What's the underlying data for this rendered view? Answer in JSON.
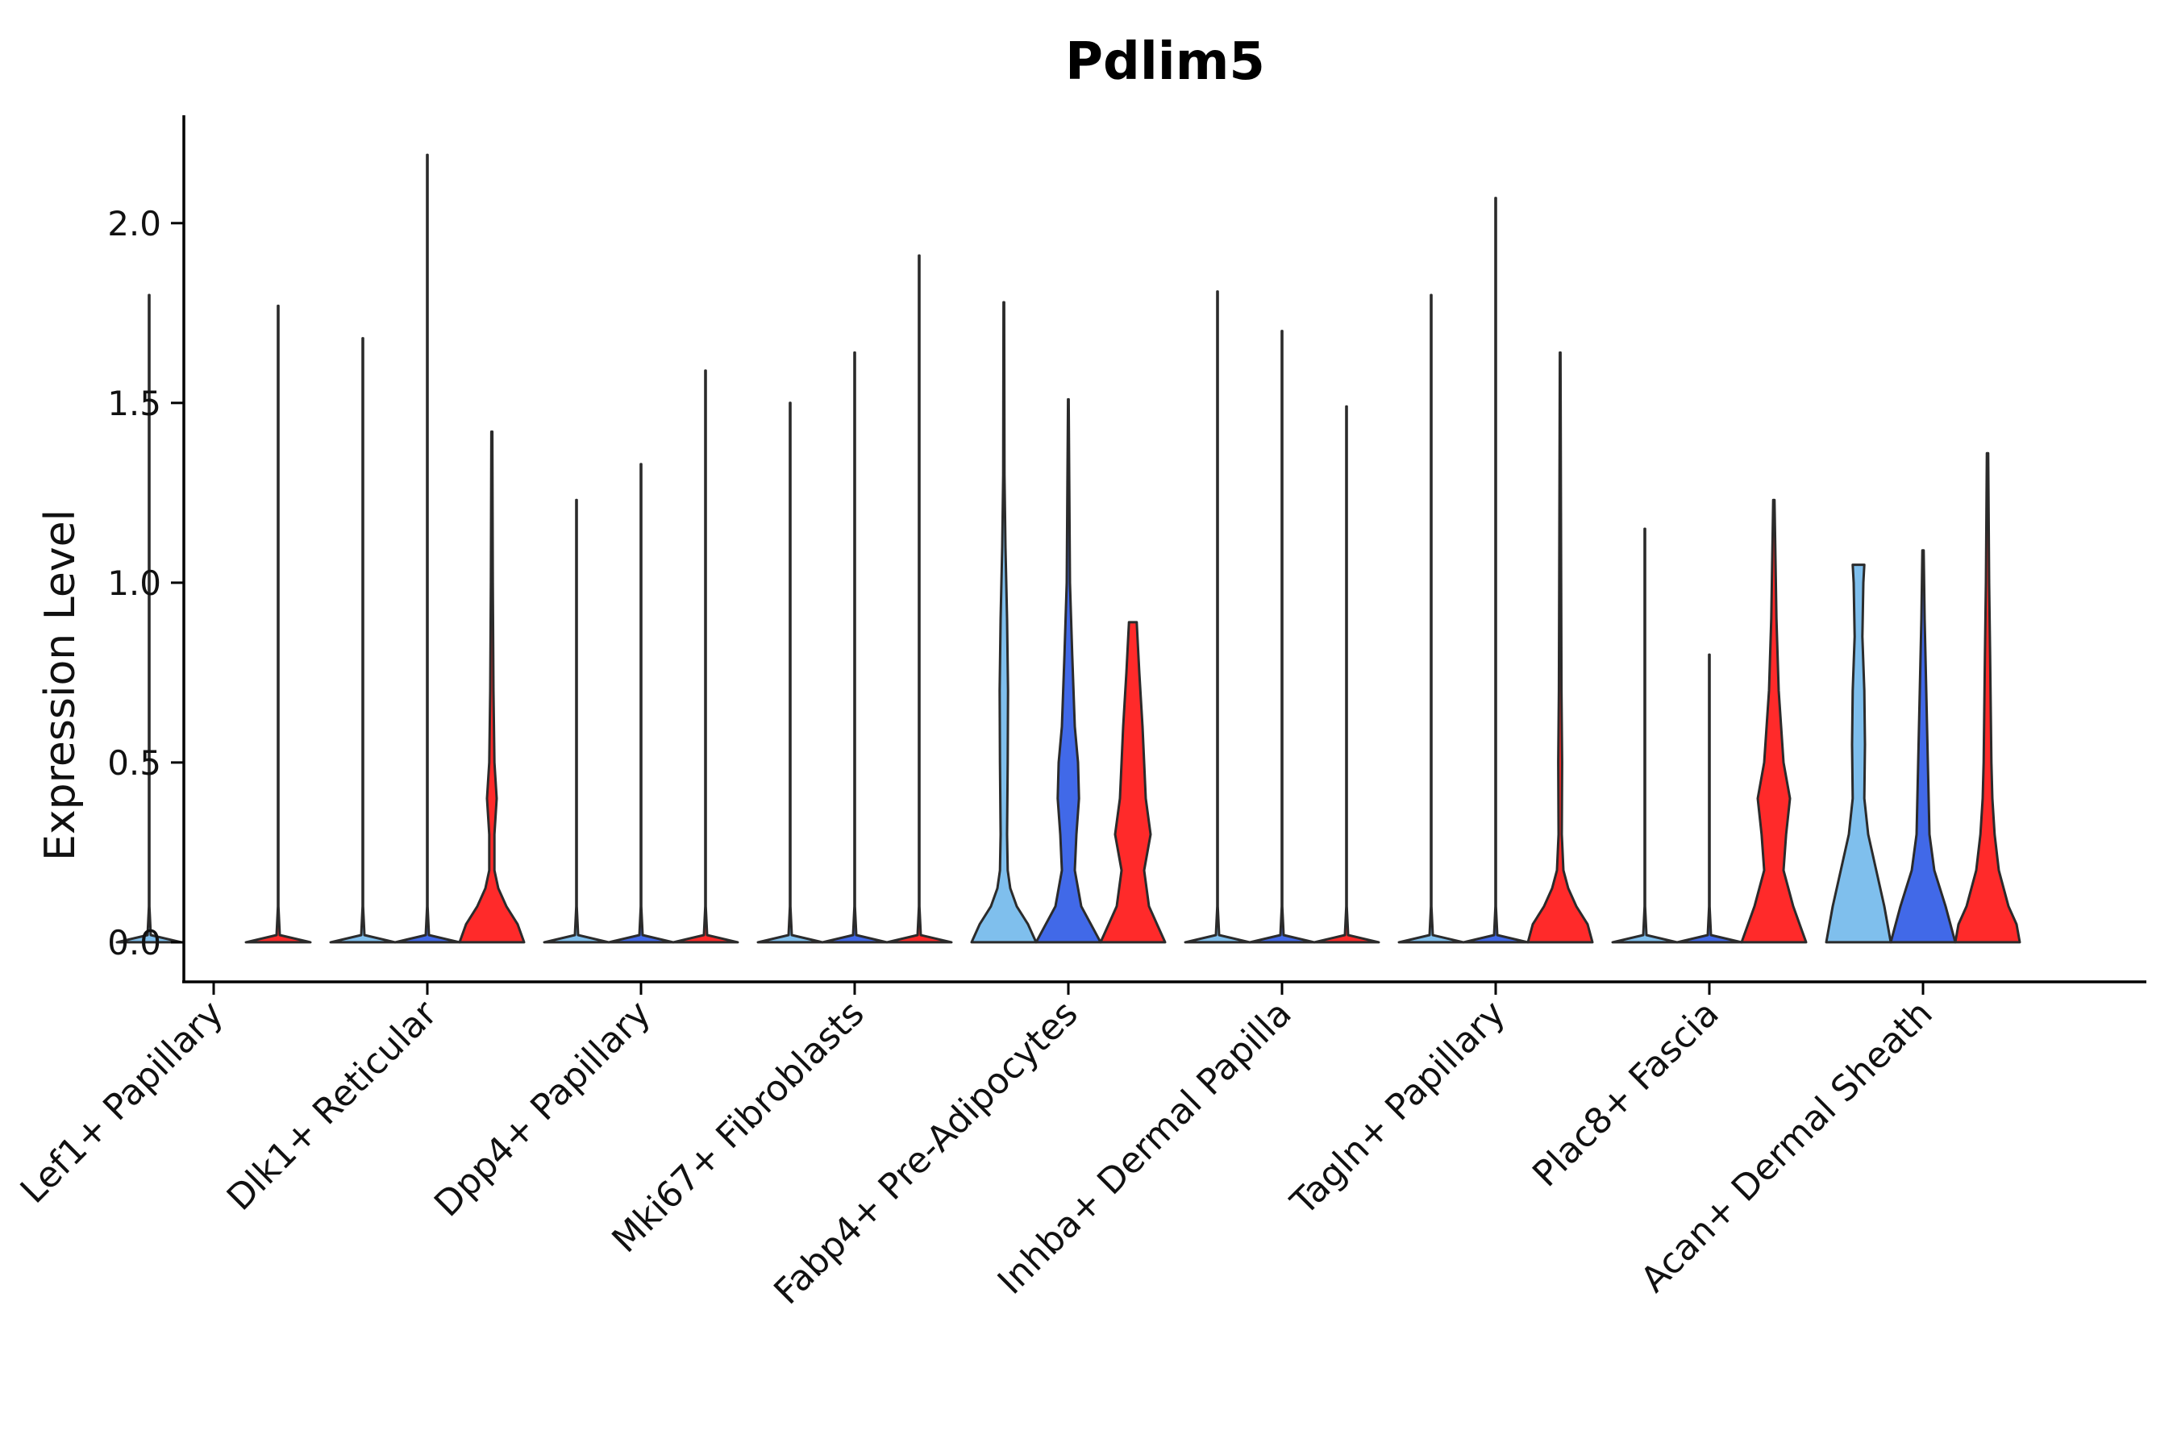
{
  "chart_data": {
    "type": "violin",
    "title": "Pdlim5",
    "xlabel": "",
    "ylabel": "Expression Level",
    "ylim": [
      -0.11,
      2.3
    ],
    "yticks": [
      0.0,
      0.5,
      1.0,
      1.5,
      2.0
    ],
    "ytick_labels": [
      "0.0",
      "0.5",
      "1.0",
      "1.5",
      "2.0"
    ],
    "series_colors": [
      "#7fbfed",
      "#4169e8",
      "#ff2a2a"
    ],
    "categories": [
      "Lef1+ Papillary",
      "Dlk1+ Reticular",
      "Dpp4+ Papillary",
      "Mki67+ Fibroblasts",
      "Fabp4+ Pre-Adipocytes",
      "Inhba+ Dermal Papilla",
      "Tagln+ Papillary",
      "Plac8+ Fascia",
      "Acan+ Dermal Sheath"
    ],
    "violins": [
      [
        {
          "max": 1.8,
          "profile": [
            [
              0,
              1
            ],
            [
              0.02,
              0.05
            ],
            [
              0.1,
              0.008
            ],
            [
              1.8,
              0.008
            ]
          ]
        },
        {
          "max": 0.0,
          "profile": []
        },
        {
          "max": 1.77,
          "profile": [
            [
              0,
              1
            ],
            [
              0.02,
              0.05
            ],
            [
              0.1,
              0.008
            ],
            [
              1.77,
              0.008
            ]
          ]
        }
      ],
      [
        {
          "max": 1.68,
          "profile": [
            [
              0,
              1
            ],
            [
              0.02,
              0.05
            ],
            [
              0.1,
              0.008
            ],
            [
              1.68,
              0.008
            ]
          ]
        },
        {
          "max": 2.19,
          "profile": [
            [
              0,
              1
            ],
            [
              0.02,
              0.05
            ],
            [
              0.1,
              0.008
            ],
            [
              2.19,
              0.008
            ]
          ]
        },
        {
          "max": 1.42,
          "profile": [
            [
              0,
              1
            ],
            [
              0.05,
              0.8
            ],
            [
              0.1,
              0.45
            ],
            [
              0.15,
              0.2
            ],
            [
              0.2,
              0.08
            ],
            [
              0.3,
              0.08
            ],
            [
              0.4,
              0.15
            ],
            [
              0.5,
              0.08
            ],
            [
              0.7,
              0.05
            ],
            [
              1.0,
              0.03
            ],
            [
              1.42,
              0.015
            ]
          ]
        }
      ],
      [
        {
          "max": 1.23,
          "profile": [
            [
              0,
              1
            ],
            [
              0.02,
              0.05
            ],
            [
              0.1,
              0.008
            ],
            [
              1.23,
              0.008
            ]
          ]
        },
        {
          "max": 1.33,
          "profile": [
            [
              0,
              1
            ],
            [
              0.02,
              0.05
            ],
            [
              0.1,
              0.008
            ],
            [
              1.33,
              0.008
            ]
          ]
        },
        {
          "max": 1.59,
          "profile": [
            [
              0,
              1
            ],
            [
              0.02,
              0.05
            ],
            [
              0.1,
              0.008
            ],
            [
              1.59,
              0.008
            ]
          ]
        }
      ],
      [
        {
          "max": 1.5,
          "profile": [
            [
              0,
              1
            ],
            [
              0.02,
              0.05
            ],
            [
              0.1,
              0.008
            ],
            [
              1.5,
              0.008
            ]
          ]
        },
        {
          "max": 1.64,
          "profile": [
            [
              0,
              1
            ],
            [
              0.02,
              0.05
            ],
            [
              0.1,
              0.008
            ],
            [
              1.64,
              0.008
            ]
          ]
        },
        {
          "max": 1.91,
          "profile": [
            [
              0,
              1
            ],
            [
              0.02,
              0.05
            ],
            [
              0.1,
              0.008
            ],
            [
              1.91,
              0.008
            ]
          ]
        }
      ],
      [
        {
          "max": 1.78,
          "profile": [
            [
              0,
              1
            ],
            [
              0.05,
              0.75
            ],
            [
              0.1,
              0.4
            ],
            [
              0.15,
              0.2
            ],
            [
              0.2,
              0.12
            ],
            [
              0.3,
              0.1
            ],
            [
              0.5,
              0.12
            ],
            [
              0.7,
              0.13
            ],
            [
              0.9,
              0.1
            ],
            [
              1.1,
              0.05
            ],
            [
              1.3,
              0.02
            ],
            [
              1.78,
              0.01
            ]
          ]
        },
        {
          "max": 1.51,
          "profile": [
            [
              0,
              1
            ],
            [
              0.05,
              0.7
            ],
            [
              0.1,
              0.4
            ],
            [
              0.2,
              0.2
            ],
            [
              0.3,
              0.25
            ],
            [
              0.4,
              0.33
            ],
            [
              0.5,
              0.3
            ],
            [
              0.6,
              0.2
            ],
            [
              0.8,
              0.12
            ],
            [
              1.0,
              0.05
            ],
            [
              1.51,
              0.01
            ]
          ]
        },
        {
          "max": 0.89,
          "profile": [
            [
              0,
              1
            ],
            [
              0.05,
              0.75
            ],
            [
              0.1,
              0.5
            ],
            [
              0.2,
              0.35
            ],
            [
              0.3,
              0.55
            ],
            [
              0.4,
              0.4
            ],
            [
              0.5,
              0.35
            ],
            [
              0.6,
              0.3
            ],
            [
              0.75,
              0.2
            ],
            [
              0.89,
              0.12
            ]
          ]
        }
      ],
      [
        {
          "max": 1.81,
          "profile": [
            [
              0,
              1
            ],
            [
              0.02,
              0.05
            ],
            [
              0.1,
              0.008
            ],
            [
              1.81,
              0.008
            ]
          ]
        },
        {
          "max": 1.7,
          "profile": [
            [
              0,
              1
            ],
            [
              0.02,
              0.05
            ],
            [
              0.1,
              0.008
            ],
            [
              1.7,
              0.008
            ]
          ]
        },
        {
          "max": 1.49,
          "profile": [
            [
              0,
              1
            ],
            [
              0.02,
              0.05
            ],
            [
              0.1,
              0.008
            ],
            [
              1.49,
              0.008
            ]
          ]
        }
      ],
      [
        {
          "max": 1.8,
          "profile": [
            [
              0,
              1
            ],
            [
              0.02,
              0.05
            ],
            [
              0.1,
              0.008
            ],
            [
              1.8,
              0.008
            ]
          ]
        },
        {
          "max": 2.07,
          "profile": [
            [
              0,
              1
            ],
            [
              0.02,
              0.05
            ],
            [
              0.1,
              0.008
            ],
            [
              2.07,
              0.008
            ]
          ]
        },
        {
          "max": 1.64,
          "profile": [
            [
              0,
              1
            ],
            [
              0.05,
              0.85
            ],
            [
              0.1,
              0.5
            ],
            [
              0.15,
              0.25
            ],
            [
              0.2,
              0.1
            ],
            [
              0.3,
              0.05
            ],
            [
              0.5,
              0.06
            ],
            [
              0.7,
              0.04
            ],
            [
              1.0,
              0.03
            ],
            [
              1.64,
              0.01
            ]
          ]
        }
      ],
      [
        {
          "max": 1.15,
          "profile": [
            [
              0,
              1
            ],
            [
              0.02,
              0.05
            ],
            [
              0.1,
              0.008
            ],
            [
              1.15,
              0.008
            ]
          ]
        },
        {
          "max": 0.8,
          "profile": [
            [
              0,
              1
            ],
            [
              0.02,
              0.05
            ],
            [
              0.1,
              0.008
            ],
            [
              0.8,
              0.008
            ]
          ]
        },
        {
          "max": 1.23,
          "profile": [
            [
              0,
              1
            ],
            [
              0.05,
              0.8
            ],
            [
              0.1,
              0.6
            ],
            [
              0.2,
              0.3
            ],
            [
              0.3,
              0.38
            ],
            [
              0.4,
              0.5
            ],
            [
              0.5,
              0.3
            ],
            [
              0.7,
              0.15
            ],
            [
              0.9,
              0.08
            ],
            [
              1.23,
              0.02
            ]
          ]
        }
      ],
      [
        {
          "max": 1.05,
          "profile": [
            [
              0,
              1
            ],
            [
              0.1,
              0.8
            ],
            [
              0.2,
              0.55
            ],
            [
              0.3,
              0.3
            ],
            [
              0.4,
              0.18
            ],
            [
              0.55,
              0.2
            ],
            [
              0.7,
              0.18
            ],
            [
              0.85,
              0.12
            ],
            [
              1.0,
              0.15
            ],
            [
              1.05,
              0.18
            ]
          ]
        },
        {
          "max": 1.09,
          "profile": [
            [
              0,
              1
            ],
            [
              0.1,
              0.7
            ],
            [
              0.2,
              0.35
            ],
            [
              0.3,
              0.2
            ],
            [
              0.5,
              0.15
            ],
            [
              0.7,
              0.1
            ],
            [
              0.9,
              0.05
            ],
            [
              1.09,
              0.02
            ]
          ]
        },
        {
          "max": 1.36,
          "profile": [
            [
              0,
              1
            ],
            [
              0.05,
              0.9
            ],
            [
              0.1,
              0.65
            ],
            [
              0.2,
              0.35
            ],
            [
              0.3,
              0.22
            ],
            [
              0.4,
              0.15
            ],
            [
              0.5,
              0.12
            ],
            [
              0.8,
              0.08
            ],
            [
              1.0,
              0.05
            ],
            [
              1.36,
              0.02
            ]
          ]
        }
      ]
    ]
  }
}
